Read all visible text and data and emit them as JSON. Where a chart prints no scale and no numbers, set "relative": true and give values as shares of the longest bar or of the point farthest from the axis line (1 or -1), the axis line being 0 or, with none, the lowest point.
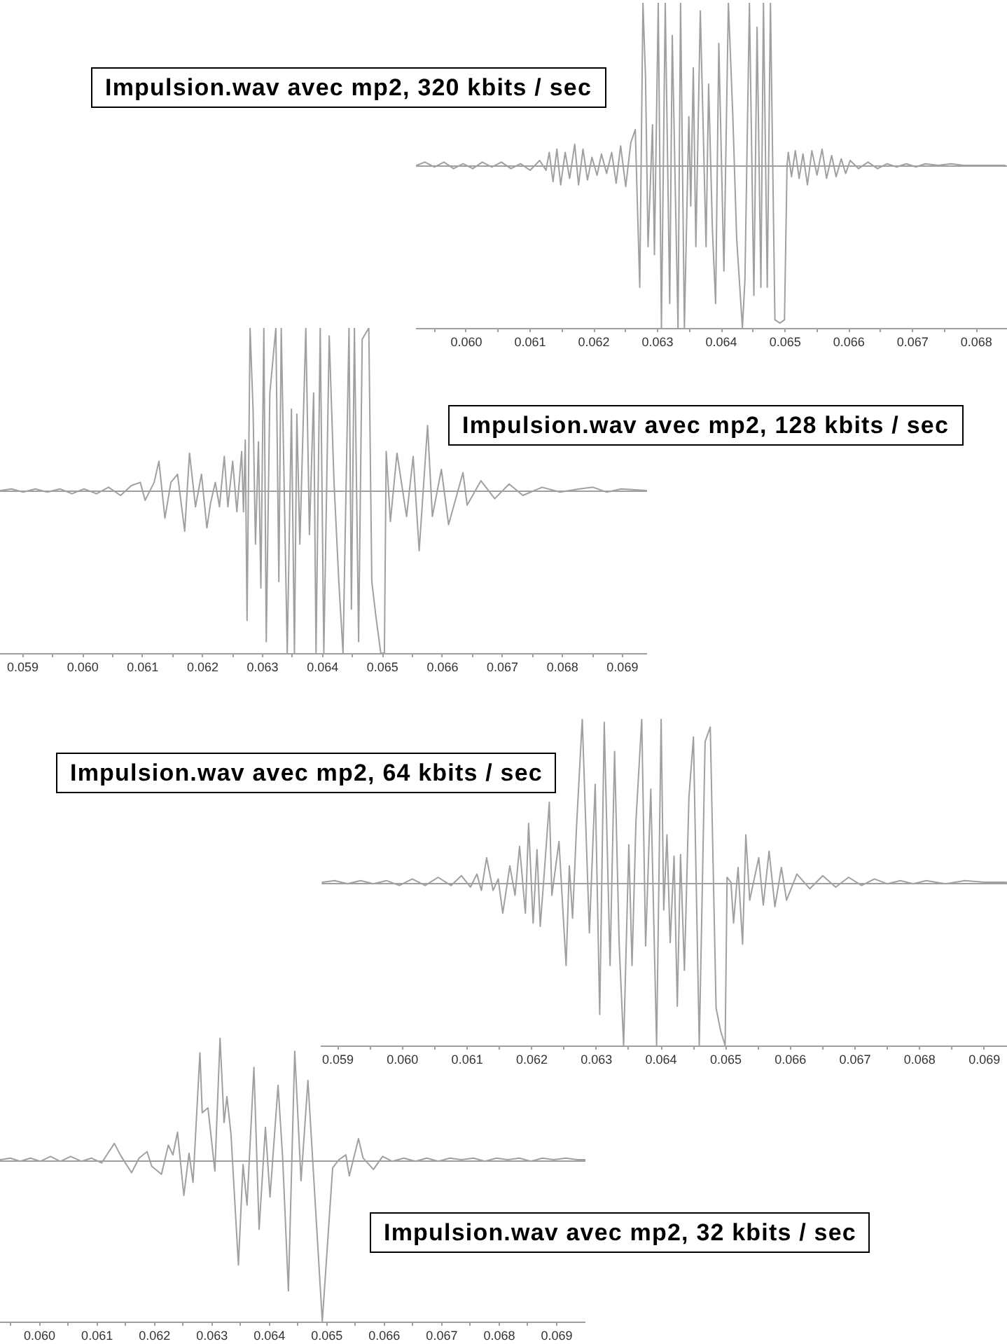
{
  "chart_data": [
    {
      "type": "line",
      "title": "Impulsion.wav avec mp2, 320 kbits / sec",
      "relative": true,
      "color": "#a0a0a0",
      "x": [
        0.05922,
        0.05935,
        0.0595,
        0.05965,
        0.0598,
        0.05995,
        0.0601,
        0.06025,
        0.0604,
        0.06055,
        0.0607,
        0.06085,
        0.061,
        0.06115,
        0.06125,
        0.0613,
        0.06136,
        0.06142,
        0.06148,
        0.06155,
        0.06162,
        0.0617,
        0.06176,
        0.06183,
        0.0619,
        0.06197,
        0.06205,
        0.06212,
        0.0622,
        0.06228,
        0.06235,
        0.06242,
        0.0625,
        0.06258,
        0.06265,
        0.06268,
        0.06272,
        0.06277,
        0.06281,
        0.06285,
        0.06292,
        0.06295,
        0.06301,
        0.06306,
        0.06312,
        0.06319,
        0.06323,
        0.06332,
        0.06336,
        0.06342,
        0.06349,
        0.06352,
        0.06356,
        0.0636,
        0.06367,
        0.06376,
        0.0638,
        0.06386,
        0.06391,
        0.06396,
        0.06404,
        0.06411,
        0.06418,
        0.06424,
        0.06433,
        0.06437,
        0.06444,
        0.06451,
        0.06456,
        0.06462,
        0.06466,
        0.06472,
        0.06477,
        0.06484,
        0.06492,
        0.06499,
        0.06503,
        0.06505,
        0.0651,
        0.06516,
        0.06522,
        0.06528,
        0.06535,
        0.06542,
        0.0655,
        0.06558,
        0.06565,
        0.06573,
        0.0658,
        0.06588,
        0.06595,
        0.06602,
        0.06615,
        0.0663,
        0.06645,
        0.0666,
        0.06675,
        0.0669,
        0.06705,
        0.0672,
        0.0674,
        0.0676,
        0.0678,
        0.068,
        0.0682,
        0.06845
      ],
      "values": [
        0,
        0.02,
        -0.01,
        0.02,
        -0.02,
        0.01,
        -0.02,
        0.02,
        -0.01,
        0.02,
        -0.02,
        0.01,
        -0.03,
        0.03,
        -0.03,
        0.08,
        -0.1,
        0.1,
        -0.12,
        0.08,
        -0.08,
        0.13,
        -0.12,
        0.1,
        -0.09,
        0.05,
        -0.06,
        0.07,
        -0.05,
        0.08,
        -0.11,
        0.12,
        -0.13,
        0.14,
        0.22,
        -0.2,
        -0.75,
        1,
        0.55,
        -0.5,
        0.25,
        -0.55,
        1,
        -1,
        1,
        -0.85,
        0.8,
        -1,
        1,
        -1,
        0.3,
        -0.25,
        0.6,
        -0.5,
        0.95,
        -0.5,
        0.5,
        -0.4,
        -0.85,
        0.75,
        -0.65,
        1,
        0.3,
        -0.45,
        -1,
        -0.7,
        1,
        -0.8,
        0.85,
        -0.75,
        1,
        -0.75,
        1,
        -0.95,
        -0.97,
        -0.95,
        0,
        0.08,
        -0.07,
        0.09,
        -0.08,
        0.07,
        -0.12,
        0.09,
        -0.06,
        0.1,
        -0.08,
        0.06,
        -0.07,
        0.04,
        -0.05,
        0.03,
        -0.02,
        0.02,
        -0.02,
        0.01,
        -0.01,
        0.01,
        -0.01,
        0.01,
        0,
        0.01,
        0,
        0,
        0,
        0
      ],
      "xlim": [
        0.05921,
        0.06848
      ],
      "xticks": [
        {
          "value": 0.0595,
          "label": null
        },
        {
          "value": 0.06,
          "label": "0.060"
        },
        {
          "value": 0.0605,
          "label": null
        },
        0.061,
        {
          "value": 0.0615,
          "label": null
        },
        0.062,
        {
          "value": 0.0625,
          "label": null
        },
        0.063,
        {
          "value": 0.0635,
          "label": null
        },
        0.064,
        {
          "value": 0.0645,
          "label": null
        },
        0.065,
        {
          "value": 0.0655,
          "label": null
        },
        0.066,
        {
          "value": 0.0665,
          "label": null
        },
        0.067,
        {
          "value": 0.0675,
          "label": null
        },
        0.068
      ],
      "ref_lines": [
        {
          "axis": "y",
          "value": 0,
          "color": "#a0a0a0"
        }
      ]
    },
    {
      "type": "line",
      "title": "Impulsion.wav avec mp2, 128 kbits / sec",
      "relative": true,
      "color": "#a0a0a0",
      "x": [
        0.05863,
        0.05881,
        0.05901,
        0.05921,
        0.05941,
        0.05962,
        0.05982,
        0.06002,
        0.06023,
        0.06043,
        0.06063,
        0.06081,
        0.06096,
        0.06104,
        0.06119,
        0.06127,
        0.06137,
        0.06147,
        0.06158,
        0.0617,
        0.06178,
        0.06188,
        0.06198,
        0.06207,
        0.06213,
        0.06221,
        0.06228,
        0.06236,
        0.06242,
        0.0625,
        0.06257,
        0.06265,
        0.06268,
        0.06271,
        0.06274,
        0.06279,
        0.06284,
        0.06288,
        0.06293,
        0.06297,
        0.06302,
        0.06306,
        0.06312,
        0.06322,
        0.06327,
        0.06331,
        0.06341,
        0.06348,
        0.06353,
        0.06357,
        0.06362,
        0.06372,
        0.06378,
        0.06385,
        0.06389,
        0.06396,
        0.06402,
        0.06411,
        0.06419,
        0.06427,
        0.06434,
        0.06444,
        0.06448,
        0.06453,
        0.0646,
        0.06466,
        0.06477,
        0.06482,
        0.06489,
        0.06497,
        0.06503,
        0.06506,
        0.06513,
        0.06524,
        0.0654,
        0.06551,
        0.06561,
        0.06575,
        0.06583,
        0.06598,
        0.0661,
        0.06634,
        0.06641,
        0.06664,
        0.06687,
        0.06711,
        0.06734,
        0.06766,
        0.06796,
        0.06828,
        0.06851,
        0.06874,
        0.06898,
        0.0694
      ],
      "values": [
        0,
        0.01,
        -0.01,
        0.01,
        -0.01,
        0.01,
        -0.02,
        0.01,
        -0.02,
        0.02,
        -0.03,
        0.03,
        0.05,
        -0.06,
        0.05,
        0.18,
        -0.17,
        0.05,
        0.1,
        -0.25,
        0.23,
        -0.1,
        0.1,
        -0.23,
        -0.08,
        0.05,
        -0.1,
        0.21,
        -0.1,
        0.18,
        -0.13,
        0.24,
        -0.13,
        0.31,
        -0.8,
        1,
        0.5,
        -0.33,
        0.3,
        -0.6,
        1,
        -0.93,
        0.6,
        1,
        -0.56,
        1,
        -1,
        0.5,
        -1,
        0.47,
        -0.33,
        1,
        -0.27,
        0.6,
        -1,
        1,
        -1,
        0.95,
        0.05,
        -0.56,
        -1,
        1,
        -0.73,
        1,
        -0.93,
        0.93,
        1,
        -0.56,
        -0.78,
        -1,
        -1,
        0.24,
        -0.19,
        0.23,
        -0.16,
        0.21,
        -0.37,
        0.4,
        -0.16,
        0.13,
        -0.21,
        0.11,
        -0.09,
        0.06,
        -0.05,
        0.04,
        -0.03,
        0.02,
        -0.01,
        0.01,
        0.02,
        -0.01,
        0.01,
        0
      ],
      "xlim": [
        0.05862,
        0.06941
      ],
      "xticks": [
        0.059,
        {
          "value": 0.0595,
          "label": null
        },
        {
          "value": 0.06,
          "label": "0.060"
        },
        {
          "value": 0.0605,
          "label": null
        },
        0.061,
        {
          "value": 0.0615,
          "label": null
        },
        0.062,
        {
          "value": 0.0625,
          "label": null
        },
        0.063,
        {
          "value": 0.0635,
          "label": null
        },
        0.064,
        {
          "value": 0.0645,
          "label": null
        },
        0.065,
        {
          "value": 0.0655,
          "label": null
        },
        0.066,
        {
          "value": 0.0665,
          "label": null
        },
        0.067,
        {
          "value": 0.0675,
          "label": null
        },
        0.068,
        {
          "value": 0.0685,
          "label": null
        },
        0.069
      ],
      "ref_lines": [
        {
          "axis": "y",
          "value": 0,
          "color": "#a0a0a0"
        }
      ]
    },
    {
      "type": "line",
      "title": "Impulsion.wav avec mp2, 64 kbits / sec",
      "relative": true,
      "color": "#a0a0a0",
      "x": [
        0.05876,
        0.05895,
        0.05915,
        0.05935,
        0.05955,
        0.05975,
        0.05995,
        0.06015,
        0.06035,
        0.06055,
        0.06075,
        0.06091,
        0.06105,
        0.06115,
        0.06122,
        0.0613,
        0.0614,
        0.06148,
        0.06155,
        0.06166,
        0.06174,
        0.06181,
        0.0619,
        0.06195,
        0.06202,
        0.06208,
        0.06213,
        0.0622,
        0.06227,
        0.06231,
        0.06242,
        0.06248,
        0.06253,
        0.06258,
        0.06263,
        0.06269,
        0.06278,
        0.06289,
        0.06298,
        0.06305,
        0.06312,
        0.06321,
        0.06328,
        0.06335,
        0.06342,
        0.0635,
        0.06355,
        0.06361,
        0.0637,
        0.06376,
        0.06384,
        0.06393,
        0.064,
        0.06404,
        0.06409,
        0.06414,
        0.0642,
        0.06425,
        0.0643,
        0.06436,
        0.06443,
        0.0645,
        0.06459,
        0.06468,
        0.06476,
        0.06485,
        0.06492,
        0.06499,
        0.06502,
        0.06508,
        0.06512,
        0.06519,
        0.06526,
        0.06531,
        0.06537,
        0.06551,
        0.06558,
        0.06567,
        0.06576,
        0.06586,
        0.06594,
        0.0661,
        0.0663,
        0.0665,
        0.0667,
        0.0669,
        0.0671,
        0.0673,
        0.0675,
        0.0677,
        0.0679,
        0.0681,
        0.0684,
        0.0687,
        0.069,
        0.06934
      ],
      "values": [
        0,
        0.01,
        -0.01,
        0.01,
        -0.01,
        0.01,
        -0.02,
        0.02,
        -0.02,
        0.03,
        -0.02,
        0.04,
        -0.03,
        0.05,
        -0.05,
        0.15,
        -0.05,
        0.02,
        -0.19,
        0.1,
        -0.08,
        0.22,
        -0.19,
        0.36,
        -0.25,
        0.2,
        -0.27,
        0.1,
        0.49,
        -0.08,
        0.25,
        -0.17,
        -0.51,
        0.1,
        -0.22,
        0.33,
        1,
        -0.31,
        0.6,
        -0.81,
        0.98,
        -0.51,
        0.8,
        -0.37,
        -1,
        0.23,
        -0.51,
        0.37,
        1,
        -0.39,
        0.57,
        -1,
        1,
        -0.17,
        0.29,
        -0.37,
        0.16,
        -0.76,
        0.17,
        -0.54,
        0.52,
        0.89,
        -1,
        0.86,
        0.95,
        -0.77,
        -0.91,
        -1,
        0.03,
        0,
        -0.25,
        0.09,
        -0.38,
        0.29,
        -0.11,
        0.15,
        -0.14,
        0.19,
        -0.15,
        0.09,
        -0.11,
        0.05,
        -0.04,
        0.04,
        -0.03,
        0.03,
        -0.02,
        0.02,
        -0.01,
        0.01,
        -0.01,
        0.01,
        -0.01,
        0.01,
        0,
        0
      ],
      "xlim": [
        0.05875,
        0.06935
      ],
      "xticks": [
        0.059,
        {
          "value": 0.0595,
          "label": null
        },
        {
          "value": 0.06,
          "label": "0.060"
        },
        {
          "value": 0.0605,
          "label": null
        },
        0.061,
        {
          "value": 0.0615,
          "label": null
        },
        0.062,
        {
          "value": 0.0625,
          "label": null
        },
        0.063,
        {
          "value": 0.0635,
          "label": null
        },
        0.064,
        {
          "value": 0.0645,
          "label": null
        },
        0.065,
        {
          "value": 0.0655,
          "label": null
        },
        0.066,
        {
          "value": 0.0665,
          "label": null
        },
        0.067,
        {
          "value": 0.0675,
          "label": null
        },
        0.068,
        {
          "value": 0.0685,
          "label": null
        },
        0.069
      ],
      "ref_lines": [
        {
          "axis": "y",
          "value": 0,
          "color": "#a0a0a0"
        }
      ]
    },
    {
      "type": "line",
      "title": "Impulsion.wav avec mp2, 32 kbits / sec",
      "relative": true,
      "color": "#a0a0a0",
      "x": [
        0.05932,
        0.05949,
        0.05966,
        0.05984,
        0.06001,
        0.06019,
        0.06036,
        0.06054,
        0.06073,
        0.0609,
        0.06108,
        0.06117,
        0.0613,
        0.06142,
        0.0616,
        0.06173,
        0.06187,
        0.06195,
        0.06212,
        0.06224,
        0.06232,
        0.0624,
        0.06251,
        0.0626,
        0.06267,
        0.06279,
        0.06283,
        0.06293,
        0.06305,
        0.06314,
        0.06321,
        0.06326,
        0.06333,
        0.06346,
        0.06354,
        0.06361,
        0.06373,
        0.06382,
        0.06393,
        0.06401,
        0.06415,
        0.06423,
        0.06433,
        0.06444,
        0.06455,
        0.06467,
        0.06492,
        0.0651,
        0.06521,
        0.06533,
        0.06539,
        0.06555,
        0.06563,
        0.06581,
        0.06597,
        0.06614,
        0.06634,
        0.06654,
        0.06674,
        0.06694,
        0.06714,
        0.06734,
        0.06755,
        0.06775,
        0.06795,
        0.06815,
        0.06835,
        0.06855,
        0.06875,
        0.06895,
        0.06916,
        0.06936,
        0.06949
      ],
      "values": [
        0,
        0.01,
        -0.01,
        0.01,
        -0.01,
        0.02,
        -0.01,
        0.02,
        -0.01,
        0.01,
        -0.02,
        0.03,
        0.1,
        0.02,
        -0.08,
        0.01,
        0.05,
        -0.04,
        -0.09,
        0.09,
        0.03,
        0.17,
        -0.22,
        0.04,
        -0.14,
        0.66,
        0.29,
        0.32,
        -0.07,
        0.75,
        0.23,
        0.39,
        0.16,
        -0.65,
        -0.03,
        -0.28,
        0.57,
        -0.43,
        0.2,
        -0.23,
        0.46,
        0.01,
        -0.81,
        0.67,
        -0.13,
        0.49,
        -1,
        -0.05,
        0,
        0.03,
        -0.1,
        0.13,
        0.01,
        -0.06,
        0.02,
        -0.01,
        0.01,
        -0.01,
        0.01,
        -0.01,
        0.01,
        0,
        0.01,
        -0.01,
        0.01,
        0,
        0.01,
        -0.01,
        0.01,
        0,
        0.01,
        0,
        0
      ],
      "xlim": [
        0.05931,
        0.0695
      ],
      "xticks": [
        {
          "value": 0.0595,
          "label": null
        },
        {
          "value": 0.06,
          "label": "0.060"
        },
        {
          "value": 0.0605,
          "label": null
        },
        0.061,
        {
          "value": 0.0615,
          "label": null
        },
        0.062,
        {
          "value": 0.0625,
          "label": null
        },
        0.063,
        {
          "value": 0.0635,
          "label": null
        },
        0.064,
        {
          "value": 0.0645,
          "label": null
        },
        0.065,
        {
          "value": 0.0655,
          "label": null
        },
        0.066,
        {
          "value": 0.0665,
          "label": null
        },
        0.067,
        {
          "value": 0.0675,
          "label": null
        },
        0.068,
        {
          "value": 0.0685,
          "label": null
        },
        0.069
      ],
      "ref_lines": [
        {
          "axis": "y",
          "value": 0,
          "color": "#a0a0a0"
        }
      ]
    }
  ]
}
